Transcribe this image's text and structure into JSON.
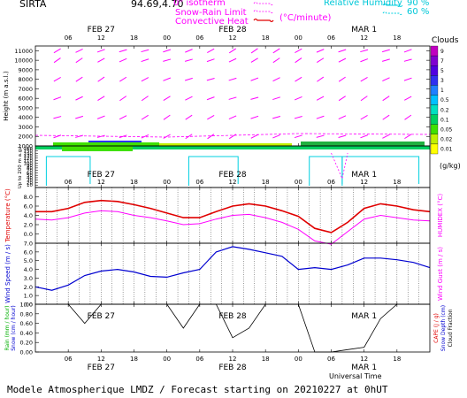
{
  "header": {
    "station": "SIRTA",
    "coords": "94.69,4.70",
    "legend_isotherm": "0° isotherm",
    "legend_snow_rain": "Snow-Rain Limit",
    "legend_conv": "Convective Heat",
    "legend_conv_unit": "(°C/minute)",
    "rh_title": "Relative Humidity",
    "rh_90": "90 %",
    "rh_60": "60 %"
  },
  "colors": {
    "magenta": "#ff00ff",
    "red": "#e00000",
    "cyan": "#00d0e0",
    "blue": "#0000d0",
    "grid": "#000000"
  },
  "time_axis": {
    "hour_ticks": [
      "06",
      "12",
      "18",
      "00",
      "06",
      "12",
      "18",
      "00",
      "06",
      "12",
      "18"
    ],
    "hour_values": [
      6,
      12,
      18,
      24,
      30,
      36,
      42,
      48,
      54,
      60,
      66
    ],
    "day_labels": [
      "FEB 27",
      "FEB 28",
      "MAR  1"
    ],
    "day_label_hours": [
      12,
      36,
      60
    ],
    "range_hours": [
      0,
      72
    ],
    "xlabel": "Universal Time"
  },
  "clouds_scale": {
    "title": "Clouds",
    "unit": "(g/kg)",
    "levels": [
      "9",
      "7",
      "5",
      "3",
      "1",
      "0.5",
      "0.2",
      "0.1",
      "0.05",
      "0.02",
      "0.01"
    ],
    "colors": [
      "#c000c0",
      "#8000d0",
      "#5000e0",
      "#3030f0",
      "#2080ff",
      "#00c0ff",
      "#00e0c0",
      "#00d060",
      "#40e000",
      "#c0f000",
      "#ffff00"
    ]
  },
  "footer": {
    "text": "Modele Atmospherique LMDZ / Forecast starting on 20210227 at 0hUT"
  },
  "chart_data": [
    {
      "type": "line",
      "panel": "upper-air wind/cloud",
      "ylabel": "Height  (m a.s.l.)",
      "ylim": [
        1000,
        11500
      ],
      "y_ticks": [
        1000,
        2000,
        3000,
        4000,
        5000,
        6000,
        7000,
        8000,
        9000,
        10000,
        11000
      ],
      "y_tick_labels": [
        "1000",
        "2000",
        "3000",
        "4000",
        "5000",
        "6000",
        "7000",
        "8000",
        "9000",
        "10000",
        "11000"
      ],
      "wind_heights": [
        2000,
        4000,
        6000,
        8000,
        10000,
        11000
      ],
      "wind_hours": [
        0,
        4,
        8,
        12,
        16,
        20,
        24,
        28,
        32,
        36,
        40,
        44,
        48,
        52,
        56,
        60,
        64,
        68,
        72
      ]
    },
    {
      "type": "line",
      "panel": "boundary layer",
      "ylabel": "Up to 200 m a.g.l.",
      "ylim": [
        0,
        170
      ],
      "y_ticks": [
        10,
        20,
        30,
        40,
        50,
        60,
        70,
        80,
        90,
        100,
        110,
        120,
        130,
        140,
        150,
        160
      ],
      "y_tick_labels": [
        "10",
        "20",
        "30",
        "40",
        "50",
        "60",
        "70",
        "80",
        "90",
        "100",
        "110",
        "120",
        "130",
        "140",
        "150",
        "160"
      ]
    },
    {
      "type": "line",
      "panel": "temperature",
      "ylabel": "Temperature (°C)",
      "ylabel_right": "HUMIDEX (°C)",
      "ylim": [
        -2,
        10
      ],
      "y_ticks": [
        0,
        2,
        4,
        6,
        8
      ],
      "y_tick_labels": [
        "0.0",
        "2.0",
        "4.0",
        "6.0",
        "8.0"
      ],
      "x": [
        0,
        3,
        6,
        9,
        12,
        15,
        18,
        21,
        24,
        27,
        30,
        33,
        36,
        39,
        42,
        45,
        48,
        51,
        54,
        57,
        60,
        63,
        66,
        69,
        72
      ],
      "series": [
        {
          "name": "Temperature",
          "values": [
            4.8,
            4.8,
            5.5,
            6.8,
            7.2,
            7.0,
            6.3,
            5.5,
            4.5,
            3.5,
            3.5,
            4.8,
            6.0,
            6.5,
            6.0,
            5.0,
            3.8,
            1.2,
            0.3,
            2.5,
            5.5,
            6.5,
            6.0,
            5.2,
            4.8
          ]
        },
        {
          "name": "HUMIDEX",
          "values": [
            3.2,
            3.0,
            3.5,
            4.5,
            5.0,
            4.8,
            4.0,
            3.5,
            2.8,
            2.0,
            2.2,
            3.2,
            4.0,
            4.2,
            3.5,
            2.5,
            1.0,
            -1.5,
            -2.2,
            0.5,
            3.2,
            4.0,
            3.5,
            3.0,
            2.8
          ]
        }
      ]
    },
    {
      "type": "line",
      "panel": "wind speed",
      "ylabel": "Wind Speed (m / s)",
      "ylabel_right": "Wind Gust (m / s)",
      "ylim": [
        0,
        7
      ],
      "y_ticks": [
        0,
        1,
        2,
        3,
        4,
        5,
        6,
        7
      ],
      "y_tick_labels": [
        "0.0",
        "1.0",
        "2.0",
        "3.0",
        "4.0",
        "5.0",
        "6.0",
        "7.0"
      ],
      "x": [
        0,
        3,
        6,
        9,
        12,
        15,
        18,
        21,
        24,
        27,
        30,
        33,
        36,
        39,
        42,
        45,
        48,
        51,
        54,
        57,
        60,
        63,
        66,
        69,
        72
      ],
      "series": [
        {
          "name": "Wind Speed",
          "values": [
            2.0,
            1.6,
            2.2,
            3.3,
            3.8,
            4.0,
            3.7,
            3.2,
            3.1,
            3.6,
            4.0,
            6.0,
            6.6,
            6.3,
            5.9,
            5.5,
            4.0,
            4.2,
            4.0,
            4.5,
            5.3,
            5.3,
            5.1,
            4.8,
            4.2
          ]
        }
      ]
    },
    {
      "type": "line",
      "panel": "rain / cloud fraction",
      "ylabel": "Rain (mm / hour)",
      "ylabel_2": "Snow (cm / hour)",
      "ylabel_right": "CAPE (J / g)",
      "ylabel_right_2": "Snow Depth (cm)",
      "ylabel_right_3": "Cloud Fraction",
      "ylim": [
        0,
        1.0
      ],
      "y_ticks": [
        0,
        0.2,
        0.4,
        0.6,
        0.8,
        1.0
      ],
      "y_tick_labels": [
        "0.00",
        "0.20",
        "0.40",
        "0.60",
        "0.80",
        "1.00"
      ],
      "x": [
        0,
        3,
        6,
        9,
        12,
        15,
        18,
        21,
        24,
        27,
        30,
        33,
        36,
        39,
        42,
        45,
        48,
        51,
        54,
        57,
        60,
        63,
        66,
        69,
        72
      ],
      "series": [
        {
          "name": "Cloud Fraction",
          "values": [
            1.0,
            1.0,
            1.0,
            0.6,
            1.0,
            1.0,
            1.0,
            1.0,
            1.0,
            0.5,
            1.0,
            1.0,
            0.3,
            0.5,
            1.0,
            1.0,
            1.0,
            0.0,
            0.0,
            0.05,
            0.1,
            0.7,
            1.0,
            1.0,
            1.0
          ]
        }
      ]
    }
  ]
}
